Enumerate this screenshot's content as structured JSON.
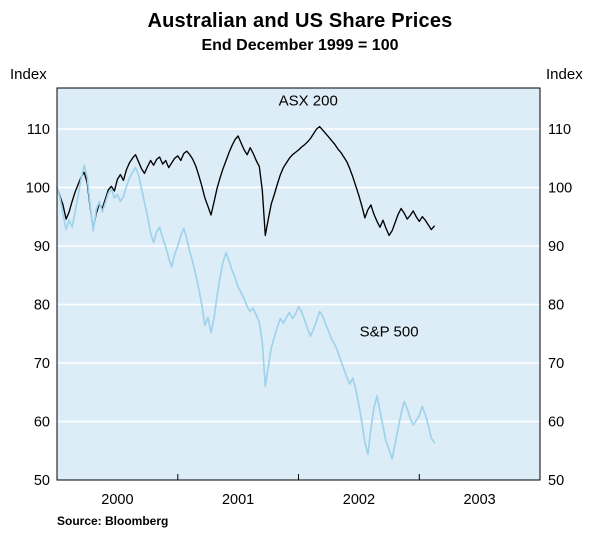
{
  "chart_data": {
    "type": "line",
    "title": "Australian and US Share Prices",
    "subtitle": "End December 1999 = 100",
    "ylabel_left": "Index",
    "ylabel_right": "Index",
    "source": "Source: Bloomberg",
    "xlim": [
      2000.0,
      2004.0
    ],
    "ylim": [
      50,
      117
    ],
    "y_ticks": [
      50,
      60,
      70,
      80,
      90,
      100,
      110
    ],
    "gridlines": [
      60,
      70,
      80,
      90,
      100,
      110
    ],
    "grid_color": "#ffffff",
    "plot_bg": "#ddedf7",
    "x_year_ticks": [
      2001,
      2002,
      2003
    ],
    "x_labels": [
      {
        "text": "2000",
        "x": 2000.5
      },
      {
        "text": "2001",
        "x": 2001.5
      },
      {
        "text": "2002",
        "x": 2002.5
      },
      {
        "text": "2003",
        "x": 2003.5
      }
    ],
    "x_start": 2000.0,
    "x_step": 0.025,
    "series": [
      {
        "id": "asx-200",
        "name": "ASX 200",
        "color": "#000000",
        "width": 1.35,
        "label_pos": {
          "x": 2002.08,
          "y": 114.0
        },
        "values": [
          100.0,
          98.5,
          97.0,
          94.6,
          95.8,
          97.6,
          99.2,
          100.5,
          101.8,
          102.6,
          100.8,
          96.5,
          93.0,
          95.5,
          97.2,
          96.4,
          98.0,
          99.6,
          100.2,
          99.4,
          101.4,
          102.2,
          101.2,
          103.0,
          104.2,
          105.0,
          105.6,
          104.4,
          103.2,
          102.4,
          103.6,
          104.6,
          103.8,
          104.8,
          105.2,
          104.0,
          104.6,
          103.4,
          104.2,
          105.0,
          105.4,
          104.6,
          105.8,
          106.2,
          105.6,
          104.8,
          103.6,
          102.0,
          100.2,
          98.2,
          96.8,
          95.3,
          97.5,
          99.8,
          101.6,
          103.2,
          104.6,
          106.0,
          107.2,
          108.2,
          108.8,
          107.6,
          106.4,
          105.6,
          106.8,
          105.8,
          104.6,
          103.6,
          99.5,
          91.8,
          94.6,
          97.2,
          98.8,
          100.6,
          102.2,
          103.4,
          104.2,
          105.0,
          105.6,
          106.0,
          106.4,
          106.9,
          107.3,
          107.8,
          108.4,
          109.2,
          110.0,
          110.4,
          109.8,
          109.2,
          108.6,
          108.0,
          107.4,
          106.6,
          106.0,
          105.2,
          104.4,
          103.2,
          101.8,
          100.2,
          98.6,
          96.8,
          94.8,
          96.2,
          97.0,
          95.4,
          94.2,
          93.2,
          94.4,
          93.0,
          91.8,
          92.6,
          94.0,
          95.4,
          96.4,
          95.6,
          94.6,
          95.2,
          96.0,
          95.0,
          94.2,
          95.0,
          94.4,
          93.6,
          92.8,
          93.4
        ]
      },
      {
        "id": "sp-500",
        "name": "S&P 500",
        "color": "#9fd3ec",
        "width": 1.7,
        "label_pos": {
          "x": 2002.75,
          "y": 74.5
        },
        "values": [
          100.0,
          98.2,
          95.4,
          92.8,
          94.4,
          93.2,
          95.8,
          98.6,
          101.6,
          103.8,
          101.8,
          97.0,
          92.6,
          96.2,
          97.6,
          95.8,
          97.4,
          99.0,
          99.8,
          98.2,
          98.8,
          97.6,
          98.4,
          100.2,
          101.6,
          102.6,
          103.4,
          102.2,
          99.8,
          97.4,
          95.0,
          92.2,
          90.6,
          92.4,
          93.2,
          91.4,
          89.8,
          88.0,
          86.4,
          88.6,
          90.0,
          91.8,
          93.0,
          91.2,
          89.0,
          87.2,
          85.0,
          82.6,
          79.8,
          76.4,
          77.8,
          75.2,
          77.6,
          81.4,
          84.6,
          87.2,
          88.9,
          87.4,
          85.8,
          84.6,
          83.0,
          82.0,
          81.0,
          79.6,
          78.8,
          79.4,
          78.2,
          77.0,
          73.5,
          66.0,
          69.4,
          72.6,
          74.4,
          76.2,
          77.6,
          76.8,
          77.8,
          78.6,
          77.6,
          78.4,
          79.6,
          78.8,
          77.4,
          75.8,
          74.6,
          75.8,
          77.2,
          78.8,
          78.0,
          76.6,
          75.4,
          74.0,
          73.2,
          72.0,
          70.4,
          69.0,
          67.6,
          66.4,
          67.4,
          65.4,
          62.8,
          59.8,
          56.4,
          54.4,
          58.8,
          62.4,
          64.4,
          61.8,
          59.2,
          56.6,
          55.2,
          53.6,
          56.2,
          58.8,
          61.4,
          63.4,
          62.2,
          60.6,
          59.4,
          60.2,
          61.0,
          62.6,
          61.2,
          59.4,
          57.2,
          56.4
        ]
      }
    ]
  }
}
